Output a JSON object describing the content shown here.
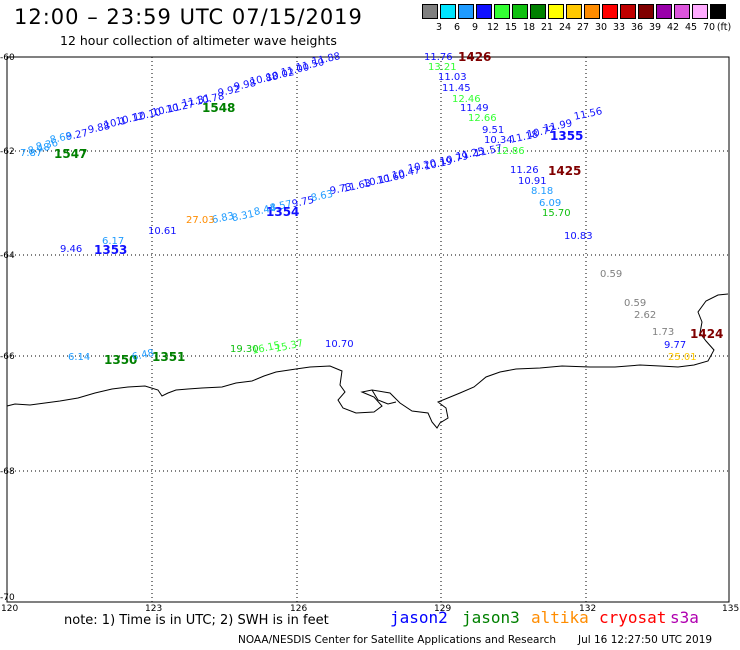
{
  "header": {
    "title": "12:00 – 23:59 UTC 07/15/2019",
    "subtitle": "12 hour collection of altimeter wave heights"
  },
  "legend": {
    "unit": "(ft)",
    "swatches": [
      {
        "label": "3",
        "color": "#808080"
      },
      {
        "label": "6",
        "color": "#00e5ff"
      },
      {
        "label": "9",
        "color": "#1e9bff"
      },
      {
        "label": "12",
        "color": "#1010ff"
      },
      {
        "label": "15",
        "color": "#33ff33"
      },
      {
        "label": "18",
        "color": "#10c010"
      },
      {
        "label": "21",
        "color": "#008000"
      },
      {
        "label": "24",
        "color": "#ffff00"
      },
      {
        "label": "27",
        "color": "#ffc800"
      },
      {
        "label": "30",
        "color": "#ff8c00"
      },
      {
        "label": "33",
        "color": "#ff0000"
      },
      {
        "label": "36",
        "color": "#c00000"
      },
      {
        "label": "39",
        "color": "#800000"
      },
      {
        "label": "42",
        "color": "#9900aa"
      },
      {
        "label": "45",
        "color": "#dd55dd"
      },
      {
        "label": "70",
        "color": "#ffaaff"
      },
      {
        "label": "",
        "color": "#000000"
      }
    ]
  },
  "axes": {
    "lat_labels": [
      "-60",
      "-62",
      "-64",
      "-66",
      "-68",
      "-70"
    ],
    "lon_labels": [
      "120",
      "123",
      "126",
      "129",
      "132",
      "135"
    ]
  },
  "observations": [
    {
      "text": "11.88",
      "color": "#1010ff"
    },
    {
      "text": "11.50",
      "color": "#1010ff"
    },
    {
      "text": "11.00",
      "color": "#1010ff"
    },
    {
      "text": "10.02",
      "color": "#1010ff"
    },
    {
      "text": "10.88",
      "color": "#1010ff"
    },
    {
      "text": "9.98",
      "color": "#1010ff"
    },
    {
      "text": "9.92",
      "color": "#1010ff"
    },
    {
      "text": "10.78",
      "color": "#1010ff"
    },
    {
      "text": "1548",
      "color": "#008000"
    },
    {
      "text": "11.31",
      "color": "#1010ff"
    },
    {
      "text": "10.27",
      "color": "#1010ff"
    },
    {
      "text": "10.11",
      "color": "#1010ff"
    },
    {
      "text": "10.10",
      "color": "#1010ff"
    },
    {
      "text": "10.12",
      "color": "#1010ff"
    },
    {
      "text": "10.1",
      "color": "#1010ff"
    },
    {
      "text": "9.88",
      "color": "#1010ff"
    },
    {
      "text": "9.27",
      "color": "#1010ff"
    },
    {
      "text": "8.68",
      "color": "#1e9bff"
    },
    {
      "text": "8.36",
      "color": "#1e9bff"
    },
    {
      "text": "8.48",
      "color": "#1e9bff"
    },
    {
      "text": "7.87",
      "color": "#1e9bff"
    },
    {
      "text": "1547",
      "color": "#008000"
    },
    {
      "text": "11.76",
      "color": "#1010ff"
    },
    {
      "text": "1426",
      "color": "#800000"
    },
    {
      "text": "13.21",
      "color": "#33ff33"
    },
    {
      "text": "11.03",
      "color": "#1010ff"
    },
    {
      "text": "11.45",
      "color": "#1010ff"
    },
    {
      "text": "12.46",
      "color": "#33ff33"
    },
    {
      "text": "11.49",
      "color": "#1010ff"
    },
    {
      "text": "12.66",
      "color": "#33ff33"
    },
    {
      "text": "9.51",
      "color": "#1010ff"
    },
    {
      "text": "10.34",
      "color": "#1010ff"
    },
    {
      "text": "11.18",
      "color": "#1010ff"
    },
    {
      "text": "10.72",
      "color": "#1010ff"
    },
    {
      "text": "11.99",
      "color": "#1010ff"
    },
    {
      "text": "11.56",
      "color": "#1010ff"
    },
    {
      "text": "1355",
      "color": "#1010ff"
    },
    {
      "text": "12.86",
      "color": "#33ff33"
    },
    {
      "text": "11.57",
      "color": "#1010ff"
    },
    {
      "text": "11.25",
      "color": "#1010ff"
    },
    {
      "text": "10.79",
      "color": "#1010ff"
    },
    {
      "text": "10.19",
      "color": "#1010ff"
    },
    {
      "text": "10.20",
      "color": "#1010ff"
    },
    {
      "text": "10.47",
      "color": "#1010ff"
    },
    {
      "text": "10.60",
      "color": "#1010ff"
    },
    {
      "text": "10.11",
      "color": "#1010ff"
    },
    {
      "text": "11.63",
      "color": "#1010ff"
    },
    {
      "text": "9.73",
      "color": "#1010ff"
    },
    {
      "text": "8.63",
      "color": "#1e9bff"
    },
    {
      "text": "9.75",
      "color": "#1010ff"
    },
    {
      "text": "8.57",
      "color": "#1e9bff"
    },
    {
      "text": "1354",
      "color": "#1010ff"
    },
    {
      "text": "8.44",
      "color": "#1e9bff"
    },
    {
      "text": "8.31",
      "color": "#1e9bff"
    },
    {
      "text": "6.83",
      "color": "#1e9bff"
    },
    {
      "text": "27.03",
      "color": "#ff8c00"
    },
    {
      "text": "10.61",
      "color": "#1010ff"
    },
    {
      "text": "6.17",
      "color": "#1e9bff"
    },
    {
      "text": "9.46",
      "color": "#1010ff"
    },
    {
      "text": "1353",
      "color": "#1010ff"
    },
    {
      "text": "11.26",
      "color": "#1010ff"
    },
    {
      "text": "1425",
      "color": "#800000"
    },
    {
      "text": "10.91",
      "color": "#1010ff"
    },
    {
      "text": "8.18",
      "color": "#1e9bff"
    },
    {
      "text": "6.09",
      "color": "#1e9bff"
    },
    {
      "text": "15.70",
      "color": "#10c010"
    },
    {
      "text": "10.83",
      "color": "#1010ff"
    },
    {
      "text": "0.59",
      "color": "#808080"
    },
    {
      "text": "0.59",
      "color": "#808080"
    },
    {
      "text": "2.62",
      "color": "#808080"
    },
    {
      "text": "1.73",
      "color": "#808080"
    },
    {
      "text": "1424",
      "color": "#800000"
    },
    {
      "text": "9.77",
      "color": "#1010ff"
    },
    {
      "text": "25.01",
      "color": "#ffc800"
    },
    {
      "text": "6.14",
      "color": "#1e9bff"
    },
    {
      "text": "1350",
      "color": "#008000"
    },
    {
      "text": "6.48",
      "color": "#1e9bff"
    },
    {
      "text": "1351",
      "color": "#008000"
    },
    {
      "text": "19.30",
      "color": "#10c010"
    },
    {
      "text": "16.15",
      "color": "#33ff33"
    },
    {
      "text": "15.37",
      "color": "#33ff33"
    },
    {
      "text": "10.70",
      "color": "#1010ff"
    }
  ],
  "footer": {
    "note": "note: 1) Time is in UTC; 2) SWH is in feet",
    "satellites": [
      {
        "name": "jason2",
        "color": "#0000ff"
      },
      {
        "name": "jason3",
        "color": "#008000"
      },
      {
        "name": "altika",
        "color": "#ff8c00"
      },
      {
        "name": "cryosat",
        "color": "#ff0000"
      },
      {
        "name": "s3a",
        "color": "#b000b0"
      }
    ],
    "credit": "NOAA/NESDIS Center for Satellite Applications and Research",
    "timestamp": "Jul 16 12:27:50 UTC 2019"
  }
}
